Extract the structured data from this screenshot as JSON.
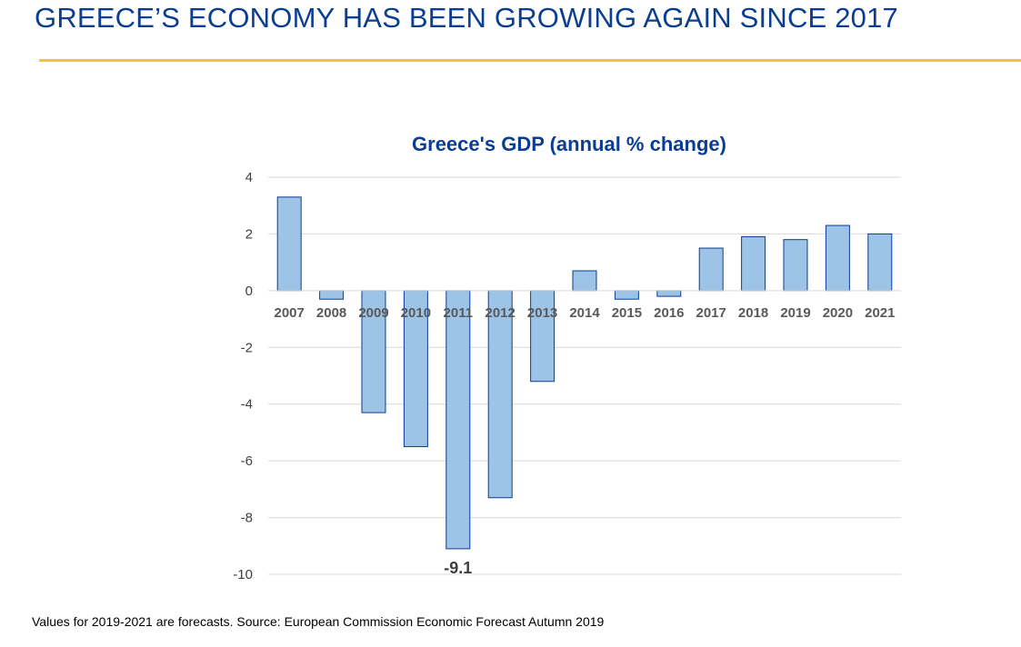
{
  "slide": {
    "title": "GREECE’S ECONOMY HAS BEEN GROWING AGAIN SINCE 2017",
    "footnote": "Values for 2019-2021 are forecasts. Source: European Commission Economic Forecast Autumn 2019"
  },
  "colors": {
    "title": "#0b3d91",
    "rule": "#f2c633",
    "bar_fill": "#9dc3e6",
    "bar_stroke": "#0b3d91",
    "grid": "#d9d9d9"
  },
  "chart_data": {
    "type": "bar",
    "title": "Greece's GDP (annual % change)",
    "xlabel": "",
    "ylabel": "",
    "categories": [
      "2007",
      "2008",
      "2009",
      "2010",
      "2011",
      "2012",
      "2013",
      "2014",
      "2015",
      "2016",
      "2017",
      "2018",
      "2019",
      "2020",
      "2021"
    ],
    "values": [
      3.3,
      -0.3,
      -4.3,
      -5.5,
      -9.1,
      -7.3,
      -3.2,
      0.7,
      -0.3,
      -0.2,
      1.5,
      1.9,
      1.8,
      2.3,
      2.0
    ],
    "yticks": [
      4,
      2,
      0,
      -2,
      -4,
      -6,
      -8,
      -10
    ],
    "ylim": [
      -10,
      4
    ],
    "grid": true,
    "legend": "none",
    "data_labels": [
      {
        "category": "2011",
        "text": "-9.1"
      }
    ]
  }
}
